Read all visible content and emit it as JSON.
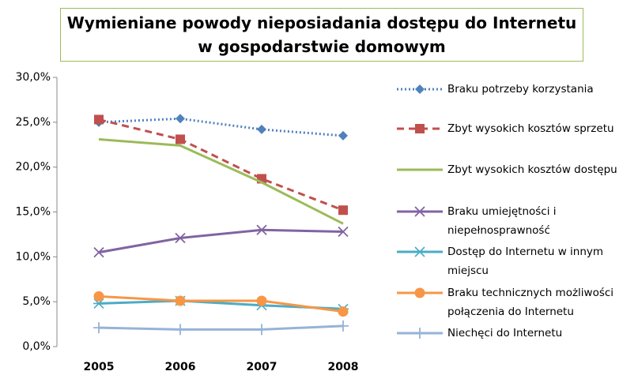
{
  "chart_data": {
    "type": "line",
    "title": "Wymieniane powody nieposiadania dostępu do Internetu w gospodarstwie domowym",
    "categories": [
      "2005",
      "2006",
      "2007",
      "2008"
    ],
    "ylim": [
      0,
      30
    ],
    "yticks": [
      {
        "value": 0,
        "label": "0,0%"
      },
      {
        "value": 5,
        "label": "5,0%"
      },
      {
        "value": 10,
        "label": "10,0%"
      },
      {
        "value": 15,
        "label": "15,0%"
      },
      {
        "value": 20,
        "label": "20,0%"
      },
      {
        "value": 25,
        "label": "25,0%"
      },
      {
        "value": 30,
        "label": "30,0%"
      }
    ],
    "legend": "right",
    "series": [
      {
        "name": "Braku potrzeby korzystania",
        "color": "#4f81bd",
        "line_style": "dotted",
        "marker": "diamond",
        "values": [
          25.0,
          25.4,
          24.2,
          23.5
        ]
      },
      {
        "name": "Zbyt wysokich kosztów  sprzetu",
        "color": "#c0504d",
        "line_style": "dashed",
        "marker": "square",
        "values": [
          25.3,
          23.1,
          18.7,
          15.2
        ]
      },
      {
        "name": "Zbyt wysokich kosztów  dostępu",
        "color": "#9bbb59",
        "line_style": "solid",
        "marker": "none",
        "values": [
          23.1,
          22.4,
          18.3,
          13.7
        ]
      },
      {
        "name": "Braku umiejętności i niepełnosprawność",
        "color": "#8064a2",
        "line_style": "solid",
        "marker": "x",
        "values": [
          10.5,
          12.1,
          13.0,
          12.8
        ]
      },
      {
        "name": "Dostęp do Internetu w innym miejscu",
        "color": "#4bacc6",
        "line_style": "solid",
        "marker": "star",
        "values": [
          4.8,
          5.1,
          4.6,
          4.2
        ]
      },
      {
        "name": "Braku technicznych możliwości połączenia do Internetu",
        "color": "#f79646",
        "line_style": "solid",
        "marker": "circle",
        "values": [
          5.6,
          5.1,
          5.1,
          3.9
        ]
      },
      {
        "name": "Niechęci do Internetu",
        "color": "#95b3d7",
        "line_style": "solid",
        "marker": "plus",
        "values": [
          2.1,
          1.9,
          1.9,
          2.3
        ]
      }
    ]
  }
}
